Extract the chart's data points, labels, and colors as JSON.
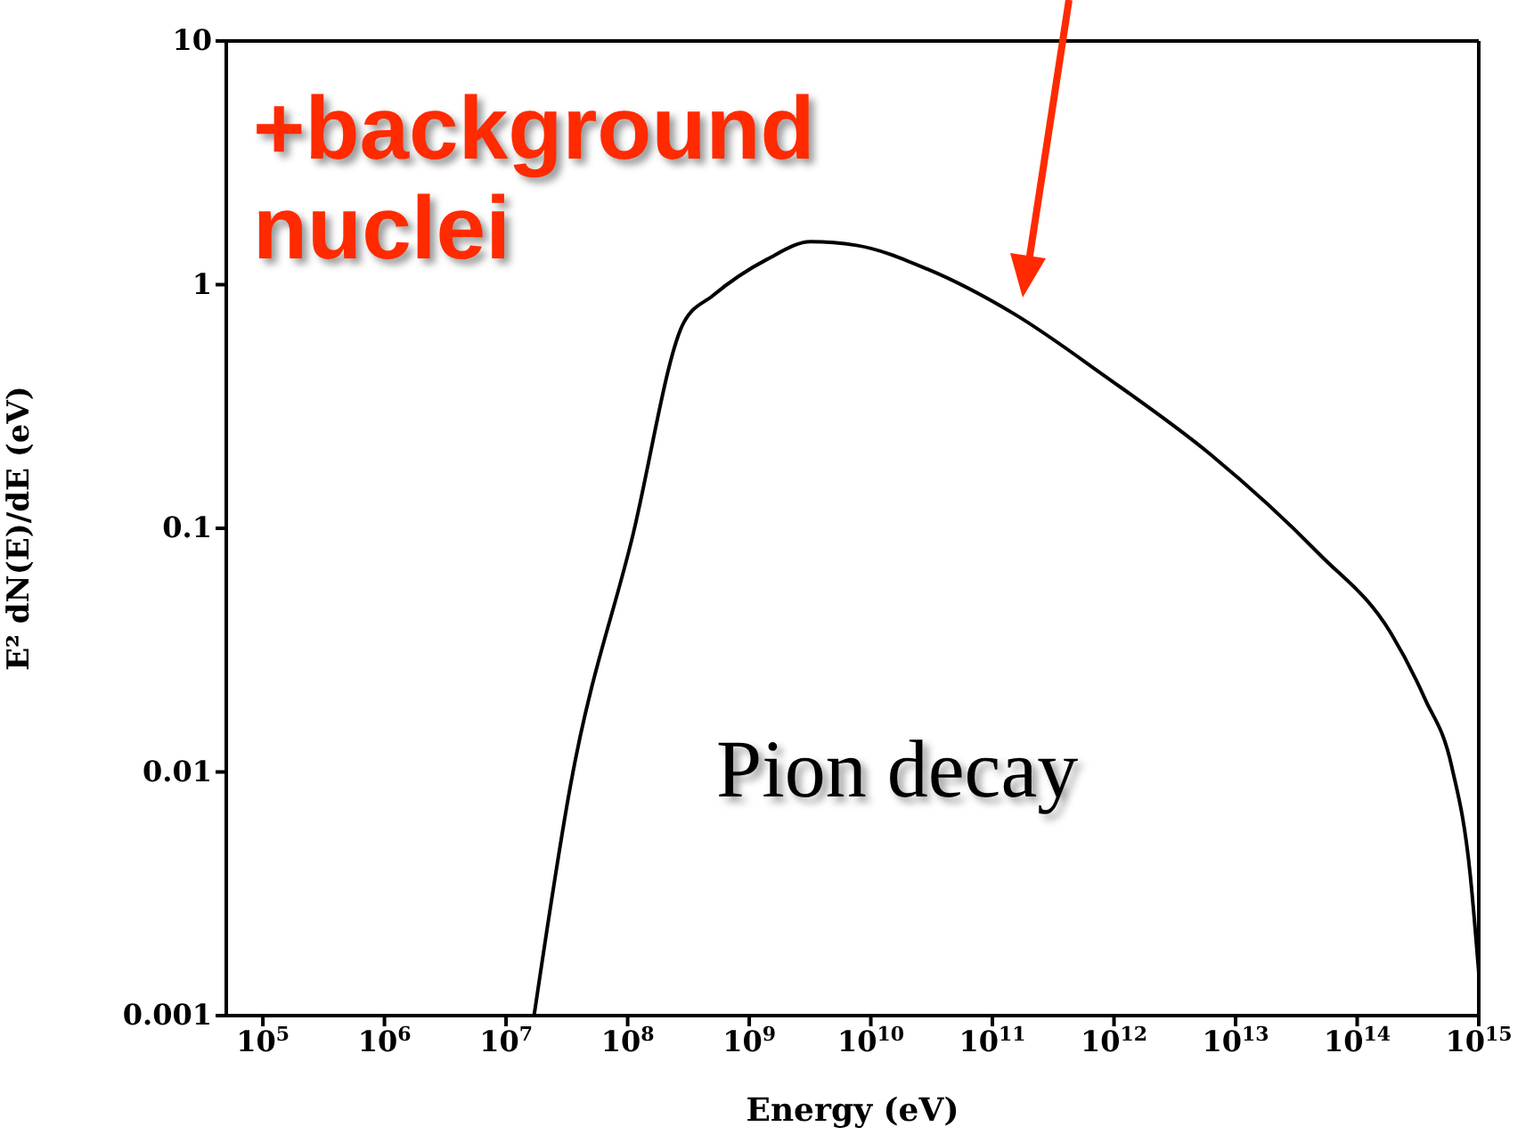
{
  "chart_data": {
    "type": "line",
    "xlabel": "Energy (eV)",
    "ylabel": "E² dN(E)/dE (eV)",
    "log": "xy",
    "xlim": [
      50000,
      1000000000000000.0
    ],
    "xticks": [
      {
        "value": 100000.0,
        "label": "10$^{5}$"
      },
      {
        "value": 1000000.0,
        "label": "10$^{6}$"
      },
      {
        "value": 10000000.0,
        "label": "10$^{7}$"
      },
      {
        "value": 100000000.0,
        "label": "10$^{8}$"
      },
      {
        "value": 1000000000.0,
        "label": "10$^{9}$"
      },
      {
        "value": 10000000000.0,
        "label": "10$^{10}$"
      },
      {
        "value": 100000000000.0,
        "label": "10$^{11}$"
      },
      {
        "value": 1000000000000.0,
        "label": "10$^{12}$"
      },
      {
        "value": 10000000000000.0,
        "label": "10$^{13}$"
      },
      {
        "value": 100000000000000.0,
        "label": "10$^{14}$"
      },
      {
        "value": 1000000000000000.0,
        "label": "10$^{15}$"
      }
    ],
    "ylim": [
      0.001,
      10
    ],
    "yticks": [
      0.001,
      0.01,
      0.1,
      1,
      10
    ],
    "series": [
      {
        "color": "#000000",
        "x": [
          17000000.0,
          34000000.0,
          110000000.0,
          290000000.0,
          500000000.0,
          1400000000.0,
          3200000000.0,
          7600000000.0,
          29000000000.0,
          150000000000.0,
          850000000000.0,
          6300000000000.0,
          48000000000000.0,
          190000000000000.0,
          360000000000000.0,
          600000000000000.0,
          850000000000000.0,
          1000000000000000.0
        ],
        "values": [
          0.001,
          0.0089,
          0.093,
          0.7,
          0.9,
          1.27,
          1.5,
          1.45,
          1.16,
          0.76,
          0.42,
          0.2,
          0.079,
          0.037,
          0.02,
          0.0105,
          0.0038,
          0.0015
        ]
      }
    ],
    "annotations": [
      "+background nuclei",
      "Pion decay"
    ],
    "marker": "none",
    "line_style": "solid"
  }
}
